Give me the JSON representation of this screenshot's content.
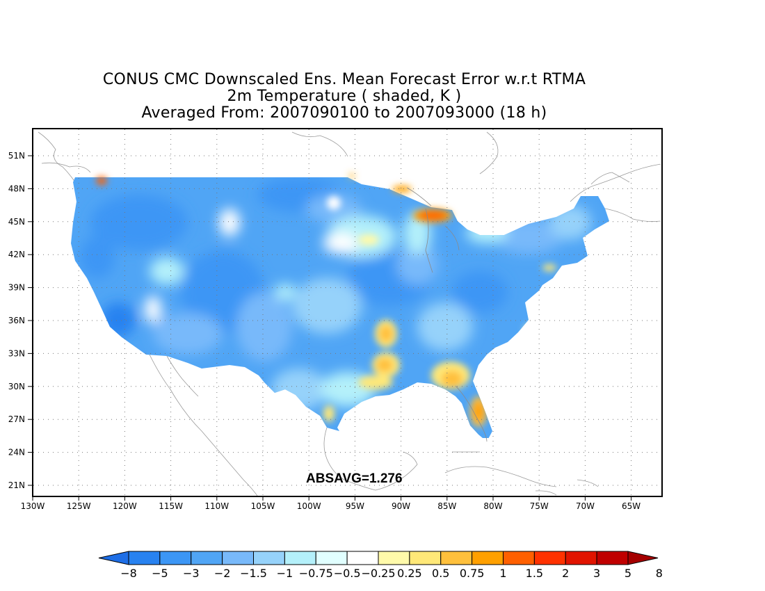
{
  "title": {
    "line1": "CONUS CMC Downscaled Ens. Mean Forecast Error w.r.t RTMA",
    "line2": "2m Temperature ( shaded, K )",
    "line3": "Averaged From: 2007090100 to 2007093000 (18 h)"
  },
  "map": {
    "lat_labels": [
      "51N",
      "48N",
      "45N",
      "42N",
      "39N",
      "36N",
      "33N",
      "30N",
      "27N",
      "24N",
      "21N"
    ],
    "lon_labels": [
      "130W",
      "125W",
      "120W",
      "115W",
      "110W",
      "105W",
      "100W",
      "95W",
      "90W",
      "85W",
      "80W",
      "75W",
      "70W",
      "65W"
    ],
    "absavg": "ABSAVG=1.276"
  },
  "colorbar": {
    "labels": [
      "-8",
      "-5",
      "-3",
      "-2",
      "-1.5",
      "-1",
      "-0.75",
      "-0.5",
      "-0.25",
      "0.25",
      "0.5",
      "0.75",
      "1",
      "1.5",
      "2",
      "3",
      "5",
      "8"
    ],
    "colors": [
      "#1e6ee6",
      "#2882f0",
      "#3c96f5",
      "#50a5f5",
      "#78b9fa",
      "#96d2fa",
      "#b4f0fa",
      "#e1ffff",
      "#ffffff",
      "#fffaaa",
      "#ffe878",
      "#ffc03c",
      "#ffa000",
      "#ff6000",
      "#ff3200",
      "#e11400",
      "#c00000",
      "#a50000"
    ]
  }
}
